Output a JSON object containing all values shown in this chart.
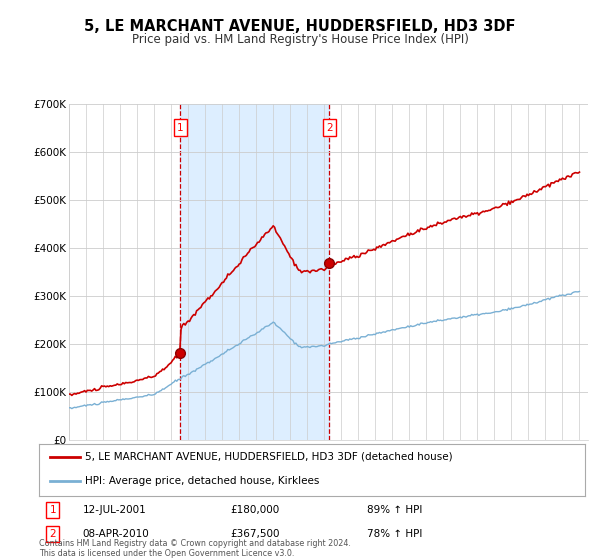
{
  "title": "5, LE MARCHANT AVENUE, HUDDERSFIELD, HD3 3DF",
  "subtitle": "Price paid vs. HM Land Registry's House Price Index (HPI)",
  "title_fontsize": 10.5,
  "subtitle_fontsize": 8.5,
  "background_color": "#ffffff",
  "plot_bg_color": "#ffffff",
  "shaded_region_color": "#ddeeff",
  "ylim": [
    0,
    700000
  ],
  "yticks": [
    0,
    100000,
    200000,
    300000,
    400000,
    500000,
    600000,
    700000
  ],
  "ytick_labels": [
    "£0",
    "£100K",
    "£200K",
    "£300K",
    "£400K",
    "£500K",
    "£600K",
    "£700K"
  ],
  "legend1_label": "5, LE MARCHANT AVENUE, HUDDERSFIELD, HD3 3DF (detached house)",
  "legend2_label": "HPI: Average price, detached house, Kirklees",
  "legend1_color": "#cc0000",
  "legend2_color": "#7ab0d4",
  "hpi_line_color": "#7ab0d4",
  "price_line_color": "#cc0000",
  "dashed_line_color": "#cc0000",
  "sale1_year": 2001.542,
  "sale1_price": 180000,
  "sale2_year": 2010.292,
  "sale2_price": 367500,
  "footer": "Contains HM Land Registry data © Crown copyright and database right 2024.\nThis data is licensed under the Open Government Licence v3.0.",
  "annotation1_date": "12-JUL-2001",
  "annotation1_price": "£180,000",
  "annotation1_hpi": "89% ↑ HPI",
  "annotation2_date": "08-APR-2010",
  "annotation2_price": "£367,500",
  "annotation2_hpi": "78% ↑ HPI"
}
